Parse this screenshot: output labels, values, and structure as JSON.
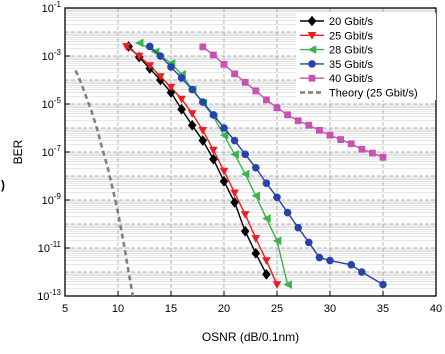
{
  "panel_label": ")",
  "chart_data": {
    "type": "line",
    "title": "",
    "xlabel": "OSNR (dB/0.1nm)",
    "ylabel": "BER",
    "xlim": [
      5,
      40
    ],
    "x_ticks": [
      5,
      10,
      15,
      20,
      25,
      30,
      35,
      40
    ],
    "ylim_exponent": [
      -13,
      -1
    ],
    "y_scale": "log",
    "y_ticks": [
      {
        "exp": -1,
        "label_base": "10",
        "label_exp": "-1"
      },
      {
        "exp": -3,
        "label_base": "10",
        "label_exp": "-3"
      },
      {
        "exp": -5,
        "label_base": "10",
        "label_exp": "-5"
      },
      {
        "exp": -7,
        "label_base": "10",
        "label_exp": "-7"
      },
      {
        "exp": -9,
        "label_base": "10",
        "label_exp": "-9"
      },
      {
        "exp": -11,
        "label_base": "10",
        "label_exp": "-11"
      },
      {
        "exp": -13,
        "label_base": "10",
        "label_exp": "-13"
      }
    ],
    "grid": true,
    "legend_position": "top-right",
    "series": [
      {
        "name": "20 Gbit/s",
        "color": "#000000",
        "marker": "diamond",
        "points": [
          [
            11,
            0.0025
          ],
          [
            12,
            0.0009
          ],
          [
            13,
            0.0003
          ],
          [
            14,
            0.0001
          ],
          [
            15,
            3e-05
          ],
          [
            16,
            6e-06
          ],
          [
            17,
            1.3e-06
          ],
          [
            18,
            3e-07
          ],
          [
            19,
            5e-08
          ],
          [
            20,
            6e-09
          ],
          [
            21,
            8e-10
          ],
          [
            22,
            5e-11
          ],
          [
            23,
            6e-12
          ],
          [
            24,
            8e-13
          ]
        ]
      },
      {
        "name": "25 Gbit/s",
        "color": "#ee1c1c",
        "marker": "triangle-down",
        "points": [
          [
            10.8,
            0.0025
          ],
          [
            12,
            0.001
          ],
          [
            13,
            0.0004
          ],
          [
            14,
            0.00014
          ],
          [
            15,
            5e-05
          ],
          [
            16,
            1.6e-05
          ],
          [
            17,
            4e-06
          ],
          [
            18,
            8e-07
          ],
          [
            19,
            1.2e-07
          ],
          [
            20,
            1.6e-08
          ],
          [
            21,
            2e-09
          ],
          [
            22,
            2.5e-10
          ],
          [
            23,
            2.5e-11
          ],
          [
            24,
            3e-12
          ],
          [
            25,
            3e-13
          ]
        ]
      },
      {
        "name": "28 Gbit/s",
        "color": "#3cb44b",
        "marker": "triangle-left",
        "points": [
          [
            12,
            0.0035
          ],
          [
            13.5,
            0.0015
          ],
          [
            15,
            0.0005
          ],
          [
            16,
            0.00017
          ],
          [
            17,
            4e-05
          ],
          [
            18,
            1.1e-05
          ],
          [
            19,
            3e-06
          ],
          [
            20,
            5e-07
          ],
          [
            21,
            8e-08
          ],
          [
            22,
            1.2e-08
          ],
          [
            23,
            1.5e-09
          ],
          [
            24,
            1.7e-10
          ],
          [
            25,
            2e-11
          ],
          [
            26,
            3e-13
          ]
        ]
      },
      {
        "name": "35 Gbit/s",
        "color": "#2742a8",
        "marker": "circle",
        "points": [
          [
            13,
            0.0025
          ],
          [
            14,
            0.001
          ],
          [
            15,
            0.00035
          ],
          [
            16,
            0.00012
          ],
          [
            17,
            4e-05
          ],
          [
            18,
            1.2e-05
          ],
          [
            19,
            3.5e-06
          ],
          [
            20,
            1e-06
          ],
          [
            21,
            3e-07
          ],
          [
            22,
            8e-08
          ],
          [
            23,
            2.2e-08
          ],
          [
            24,
            5e-09
          ],
          [
            25,
            1.3e-09
          ],
          [
            26,
            3e-10
          ],
          [
            27,
            7e-11
          ],
          [
            28,
            1.7e-11
          ],
          [
            29,
            4e-12
          ],
          [
            30,
            3e-12
          ],
          [
            32,
            2e-12
          ],
          [
            33,
            1e-12
          ],
          [
            35,
            3e-13
          ]
        ]
      },
      {
        "name": "40 Gbit/s",
        "color": "#c653b3",
        "marker": "square",
        "points": [
          [
            18,
            0.0024
          ],
          [
            19,
            0.0011
          ],
          [
            20,
            0.00045
          ],
          [
            21,
            0.00018
          ],
          [
            22,
            8e-05
          ],
          [
            23,
            3.5e-05
          ],
          [
            24,
            1.5e-05
          ],
          [
            25,
            7e-06
          ],
          [
            26,
            3.5e-06
          ],
          [
            27,
            2e-06
          ],
          [
            28,
            1.3e-06
          ],
          [
            29,
            8e-07
          ],
          [
            30,
            5e-07
          ],
          [
            31,
            3.3e-07
          ],
          [
            32,
            2.2e-07
          ],
          [
            33,
            1.3e-07
          ],
          [
            34,
            9e-08
          ],
          [
            35,
            6e-08
          ]
        ]
      },
      {
        "name": "Theory (25 Gbit/s)",
        "color": "#808080",
        "marker": "none",
        "dash": true,
        "points": [
          [
            6.0,
            0.00025
          ],
          [
            6.5,
            8e-05
          ],
          [
            7.0,
            2e-05
          ],
          [
            7.5,
            5e-06
          ],
          [
            8.0,
            1e-06
          ],
          [
            8.5,
            1.5e-07
          ],
          [
            9.0,
            2.5e-08
          ],
          [
            9.5,
            3e-09
          ],
          [
            10.0,
            3e-10
          ],
          [
            10.5,
            2e-11
          ],
          [
            11.0,
            1e-12
          ],
          [
            11.4,
            1e-13
          ]
        ]
      }
    ]
  }
}
